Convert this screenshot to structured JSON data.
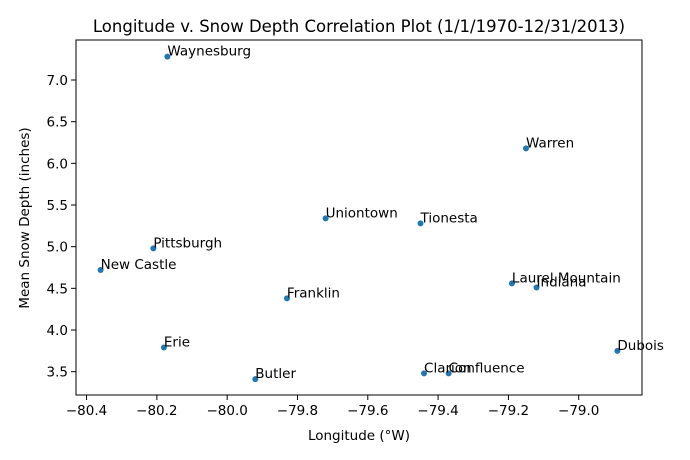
{
  "chart_data": {
    "type": "scatter",
    "title": "Longitude v. Snow Depth Correlation Plot (1/1/1970-12/31/2013)",
    "xlabel": "Longitude (°W)",
    "ylabel": "Mean Snow Depth (inches)",
    "xlim": [
      -80.43,
      -78.82
    ],
    "ylim": [
      3.22,
      7.48
    ],
    "xticks": [
      -80.4,
      -80.2,
      -80.0,
      -79.8,
      -79.6,
      -79.4,
      -79.2,
      -79.0
    ],
    "xtick_labels": [
      "−80.4",
      "−80.2",
      "−80.0",
      "−79.8",
      "−79.6",
      "−79.4",
      "−79.2",
      "−79.0"
    ],
    "yticks": [
      3.5,
      4.0,
      4.5,
      5.0,
      5.5,
      6.0,
      6.5,
      7.0
    ],
    "ytick_labels": [
      "3.5",
      "4.0",
      "4.5",
      "5.0",
      "5.5",
      "6.0",
      "6.5",
      "7.0"
    ],
    "grid": false,
    "point_color": "#1f77b4",
    "points": [
      {
        "label": "Waynesburg",
        "x": -80.17,
        "y": 7.28
      },
      {
        "label": "Warren",
        "x": -79.15,
        "y": 6.18
      },
      {
        "label": "Uniontown",
        "x": -79.72,
        "y": 5.34
      },
      {
        "label": "Tionesta",
        "x": -79.45,
        "y": 5.28
      },
      {
        "label": "Pittsburgh",
        "x": -80.21,
        "y": 4.98
      },
      {
        "label": "New Castle",
        "x": -80.36,
        "y": 4.72
      },
      {
        "label": "Laurel Mountain",
        "x": -79.19,
        "y": 4.56
      },
      {
        "label": "Indiana",
        "x": -79.12,
        "y": 4.51
      },
      {
        "label": "Franklin",
        "x": -79.83,
        "y": 4.38
      },
      {
        "label": "Erie",
        "x": -80.18,
        "y": 3.79
      },
      {
        "label": "Dubois",
        "x": -78.89,
        "y": 3.75
      },
      {
        "label": "Clarion",
        "x": -79.44,
        "y": 3.48
      },
      {
        "label": "Confluence",
        "x": -79.37,
        "y": 3.48
      },
      {
        "label": "Butler",
        "x": -79.92,
        "y": 3.41
      }
    ]
  }
}
